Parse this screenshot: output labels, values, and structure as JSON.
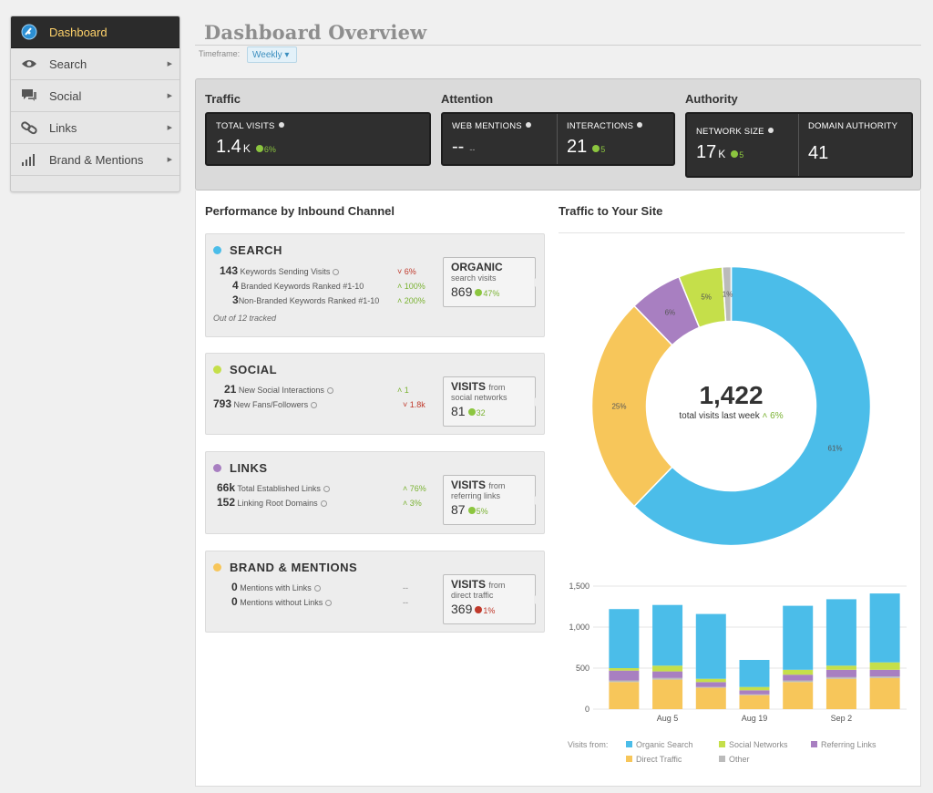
{
  "sidebar": {
    "items": [
      {
        "label": "Dashboard",
        "icon": "gauge-icon",
        "active": true
      },
      {
        "label": "Search",
        "icon": "eye-icon"
      },
      {
        "label": "Social",
        "icon": "speech-bubble-icon"
      },
      {
        "label": "Links",
        "icon": "chain-link-icon"
      },
      {
        "label": "Brand & Mentions",
        "icon": "bar-chart-icon"
      }
    ]
  },
  "header": {
    "title": "Dashboard Overview",
    "timeframe_label": "Timeframe:",
    "timeframe_value": "Weekly ▾"
  },
  "metrics": {
    "traffic": {
      "heading": "Traffic",
      "total_visits": {
        "label": "TOTAL VISITS",
        "value": "1.4",
        "unit": "K",
        "change": "6%"
      }
    },
    "attention": {
      "heading": "Attention",
      "web_mentions": {
        "label": "WEB MENTIONS",
        "value": "--",
        "change": "--"
      },
      "interactions": {
        "label": "INTERACTIONS",
        "value": "21",
        "change": "5"
      }
    },
    "authority": {
      "heading": "Authority",
      "network_size": {
        "label": "NETWORK SIZE",
        "value": "17",
        "unit": "K",
        "change": "5"
      },
      "domain_authority": {
        "label": "DOMAIN AUTHORITY",
        "value": "41"
      }
    }
  },
  "performance": {
    "title": "Performance by Inbound Channel",
    "search": {
      "title": "SEARCH",
      "rows": [
        {
          "num": "143",
          "label": "Keywords Sending Visits",
          "change": "6%",
          "dir": "down"
        },
        {
          "num": "4",
          "label": "Branded Keywords Ranked #1-10",
          "change": "100%",
          "dir": "up"
        },
        {
          "num": "3",
          "label": "Non-Branded Keywords Ranked #1-10",
          "change": "200%",
          "dir": "up"
        }
      ],
      "tracked": "Out of 12 tracked",
      "box": {
        "title": "ORGANIC",
        "title_small": "",
        "sub": "search visits",
        "value": "869",
        "change": "47%"
      }
    },
    "social": {
      "title": "SOCIAL",
      "rows": [
        {
          "num": "21",
          "label": "New Social Interactions",
          "change": "1",
          "dir": "up"
        },
        {
          "num": "793",
          "label": "New Fans/Followers",
          "change": "1.8k",
          "dir": "down"
        }
      ],
      "box": {
        "title": "VISITS",
        "title_small": "from",
        "sub": "social networks",
        "value": "81",
        "change": "32"
      }
    },
    "links": {
      "title": "LINKS",
      "rows": [
        {
          "num": "66k",
          "label": "Total Established Links",
          "change": "76%",
          "dir": "up"
        },
        {
          "num": "152",
          "label": "Linking Root Domains",
          "change": "3%",
          "dir": "up"
        }
      ],
      "box": {
        "title": "VISITS",
        "title_small": "from",
        "sub": "referring links",
        "value": "87",
        "change": "5%"
      }
    },
    "brand": {
      "title": "BRAND & MENTIONS",
      "rows": [
        {
          "num": "0",
          "label": "Mentions with Links",
          "change": "--",
          "dir": "flat"
        },
        {
          "num": "0",
          "label": "Mentions without Links",
          "change": "--",
          "dir": "flat"
        }
      ],
      "box": {
        "title": "VISITS",
        "title_small": "from",
        "sub": "direct traffic",
        "value": "369",
        "change": "1%"
      }
    }
  },
  "traffic_site": {
    "title": "Traffic to Your Site",
    "center_value": "1,422",
    "center_label": "total visits last week",
    "center_change": "6%"
  },
  "colors": {
    "organic": "#4bbde9",
    "social": "#c5df4a",
    "referring": "#a87fc1",
    "direct": "#f7c65a",
    "other": "#bbbbbb"
  },
  "chart_data": [
    {
      "type": "pie",
      "categories": [
        "Organic Search",
        "Direct Traffic",
        "Referring Links",
        "Social Networks",
        "Other"
      ],
      "values": [
        61,
        25,
        6,
        5,
        1
      ],
      "labels": [
        "61%",
        "25%",
        "6%",
        "5%",
        "1%"
      ]
    },
    {
      "type": "bar",
      "stacked": true,
      "categories": [
        "",
        "Aug 5",
        "",
        "Aug 19",
        "",
        "Sep 2",
        ""
      ],
      "series": [
        {
          "name": "Direct Traffic",
          "values": [
            330,
            360,
            260,
            170,
            330,
            370,
            380
          ]
        },
        {
          "name": "Other",
          "values": [
            20,
            20,
            10,
            10,
            20,
            20,
            20
          ]
        },
        {
          "name": "Referring Links",
          "values": [
            120,
            80,
            60,
            50,
            70,
            90,
            80
          ]
        },
        {
          "name": "Social Networks",
          "values": [
            30,
            70,
            40,
            40,
            60,
            50,
            90
          ]
        },
        {
          "name": "Organic Search",
          "values": [
            720,
            740,
            790,
            330,
            780,
            810,
            840
          ]
        }
      ],
      "yticks": [
        "1,500",
        "1,000",
        "500",
        "0"
      ],
      "ylim": [
        0,
        1500
      ],
      "legend_title": "Visits from:",
      "legend": [
        "Organic Search",
        "Social Networks",
        "Referring Links",
        "Direct Traffic",
        "Other"
      ]
    }
  ]
}
